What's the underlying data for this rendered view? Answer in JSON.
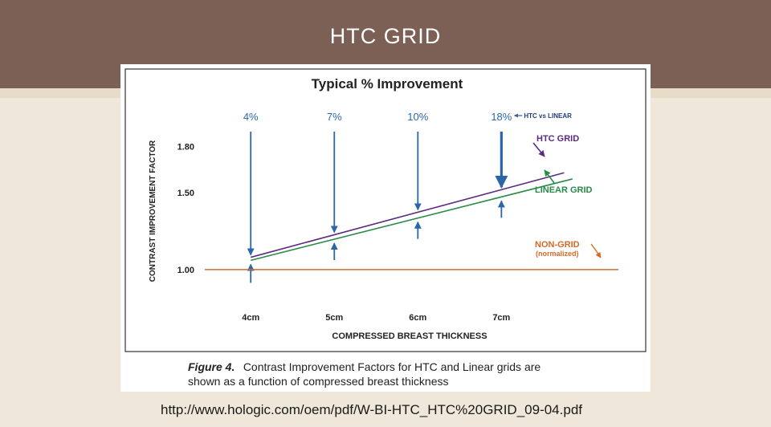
{
  "slide": {
    "title": "HTC GRID",
    "source_url": "http://www.hologic.com/oem/pdf/W-BI-HTC_HTC%20GRID_09-04.pdf"
  },
  "colors": {
    "header": "#7c5f55",
    "background": "#efe8da",
    "htc": "#5b2a82",
    "linear": "#2a8a48",
    "nongrid": "#d56a28",
    "arrow": "#2a67a8"
  },
  "chart_data": {
    "type": "line",
    "title": "Typical % Improvement",
    "xlabel": "COMPRESSED BREAST THICKNESS",
    "ylabel": "CONTRAST IMPROVEMENT FACTOR",
    "categories": [
      "4cm",
      "5cm",
      "6cm",
      "7cm"
    ],
    "x": [
      4,
      5,
      6,
      7
    ],
    "xlim": [
      3.45,
      8.4
    ],
    "ylim": [
      0.78,
      1.95
    ],
    "yticks": [
      1.0,
      1.5,
      1.8
    ],
    "ytick_labels": [
      "1.00",
      "1.50",
      "1.80"
    ],
    "grid": false,
    "series": [
      {
        "name": "HTC GRID",
        "x": [
          4,
          7.75
        ],
        "values": [
          1.08,
          1.63
        ]
      },
      {
        "name": "LINEAR GRID",
        "x": [
          4,
          7.85
        ],
        "values": [
          1.06,
          1.59
        ]
      },
      {
        "name": "NON-GRID",
        "sub": "(normalized)",
        "x": [
          3.45,
          8.4
        ],
        "values": [
          1.0,
          1.0
        ]
      }
    ],
    "improvement": {
      "labels": [
        "4%",
        "7%",
        "10%",
        "18%"
      ],
      "note": "HTC vs LINEAR",
      "x": [
        4,
        5,
        6,
        7
      ]
    },
    "caption": {
      "figure": "Figure 4.",
      "line1": "Contrast Improvement Factors for HTC and Linear grids are",
      "line2": "shown as a function of compressed breast thickness"
    }
  }
}
